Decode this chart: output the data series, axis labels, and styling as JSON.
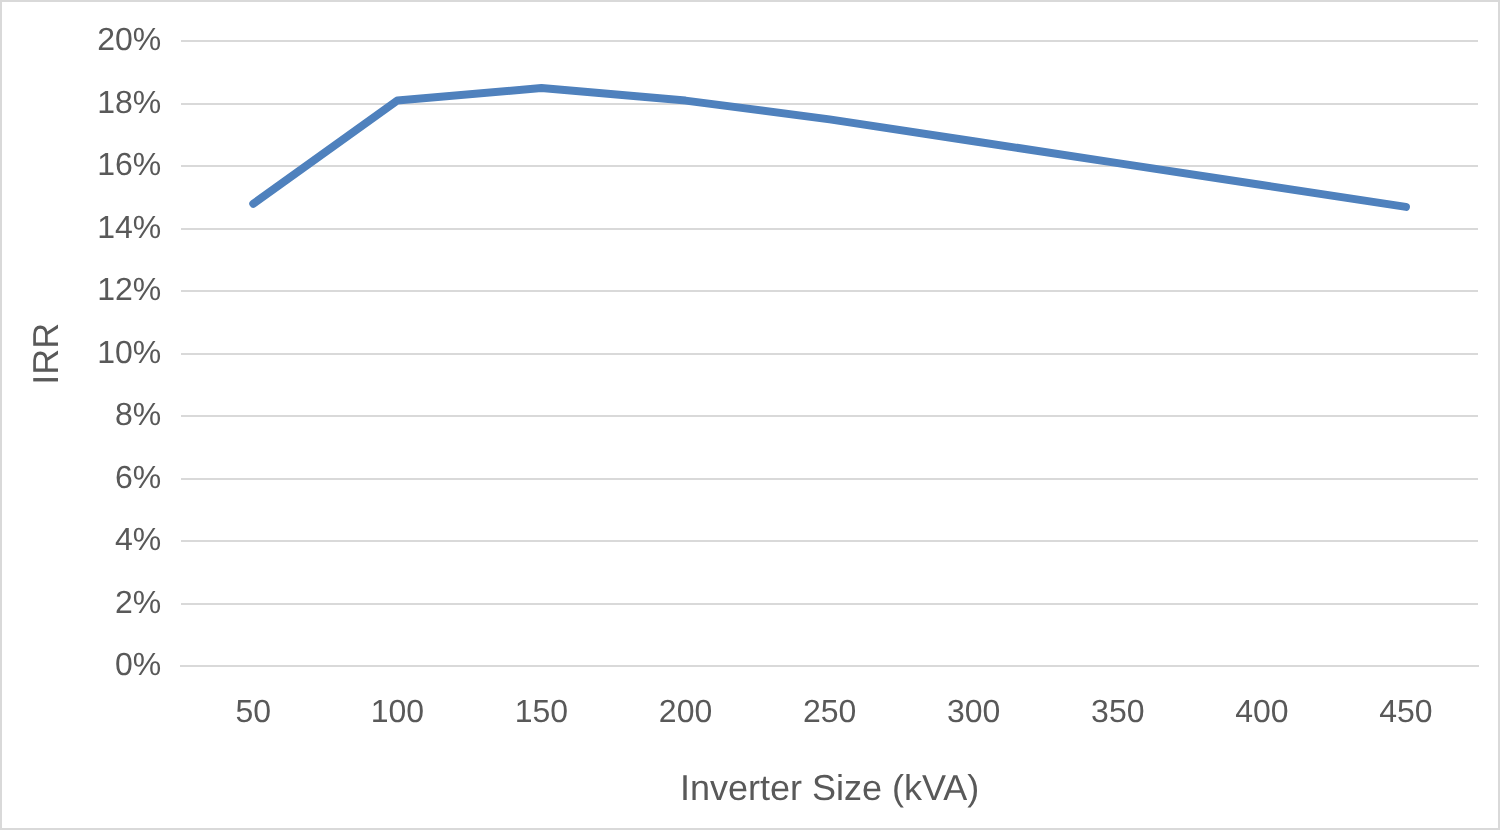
{
  "chart_data": {
    "type": "line",
    "xlabel": "Inverter Size (kVA)",
    "ylabel": "IRR",
    "categories": [
      "50",
      "100",
      "150",
      "200",
      "250",
      "300",
      "350",
      "400",
      "450"
    ],
    "series": [
      {
        "color": "#4f81bd",
        "values": [
          14.8,
          18.1,
          18.5,
          18.1,
          17.5,
          16.8,
          16.1,
          15.4,
          14.7
        ]
      }
    ],
    "ylim": [
      0,
      20
    ],
    "yticks": [
      {
        "value": 0,
        "label": "0%"
      },
      {
        "value": 2,
        "label": "2%"
      },
      {
        "value": 4,
        "label": "4%"
      },
      {
        "value": 6,
        "label": "6%"
      },
      {
        "value": 8,
        "label": "8%"
      },
      {
        "value": 10,
        "label": "10%"
      },
      {
        "value": 12,
        "label": "12%"
      },
      {
        "value": 14,
        "label": "14%"
      },
      {
        "value": 16,
        "label": "16%"
      },
      {
        "value": 18,
        "label": "18%"
      },
      {
        "value": 20,
        "label": "20%"
      }
    ],
    "grid": "y",
    "legend": false,
    "marker": "none",
    "line_style": "solid"
  }
}
